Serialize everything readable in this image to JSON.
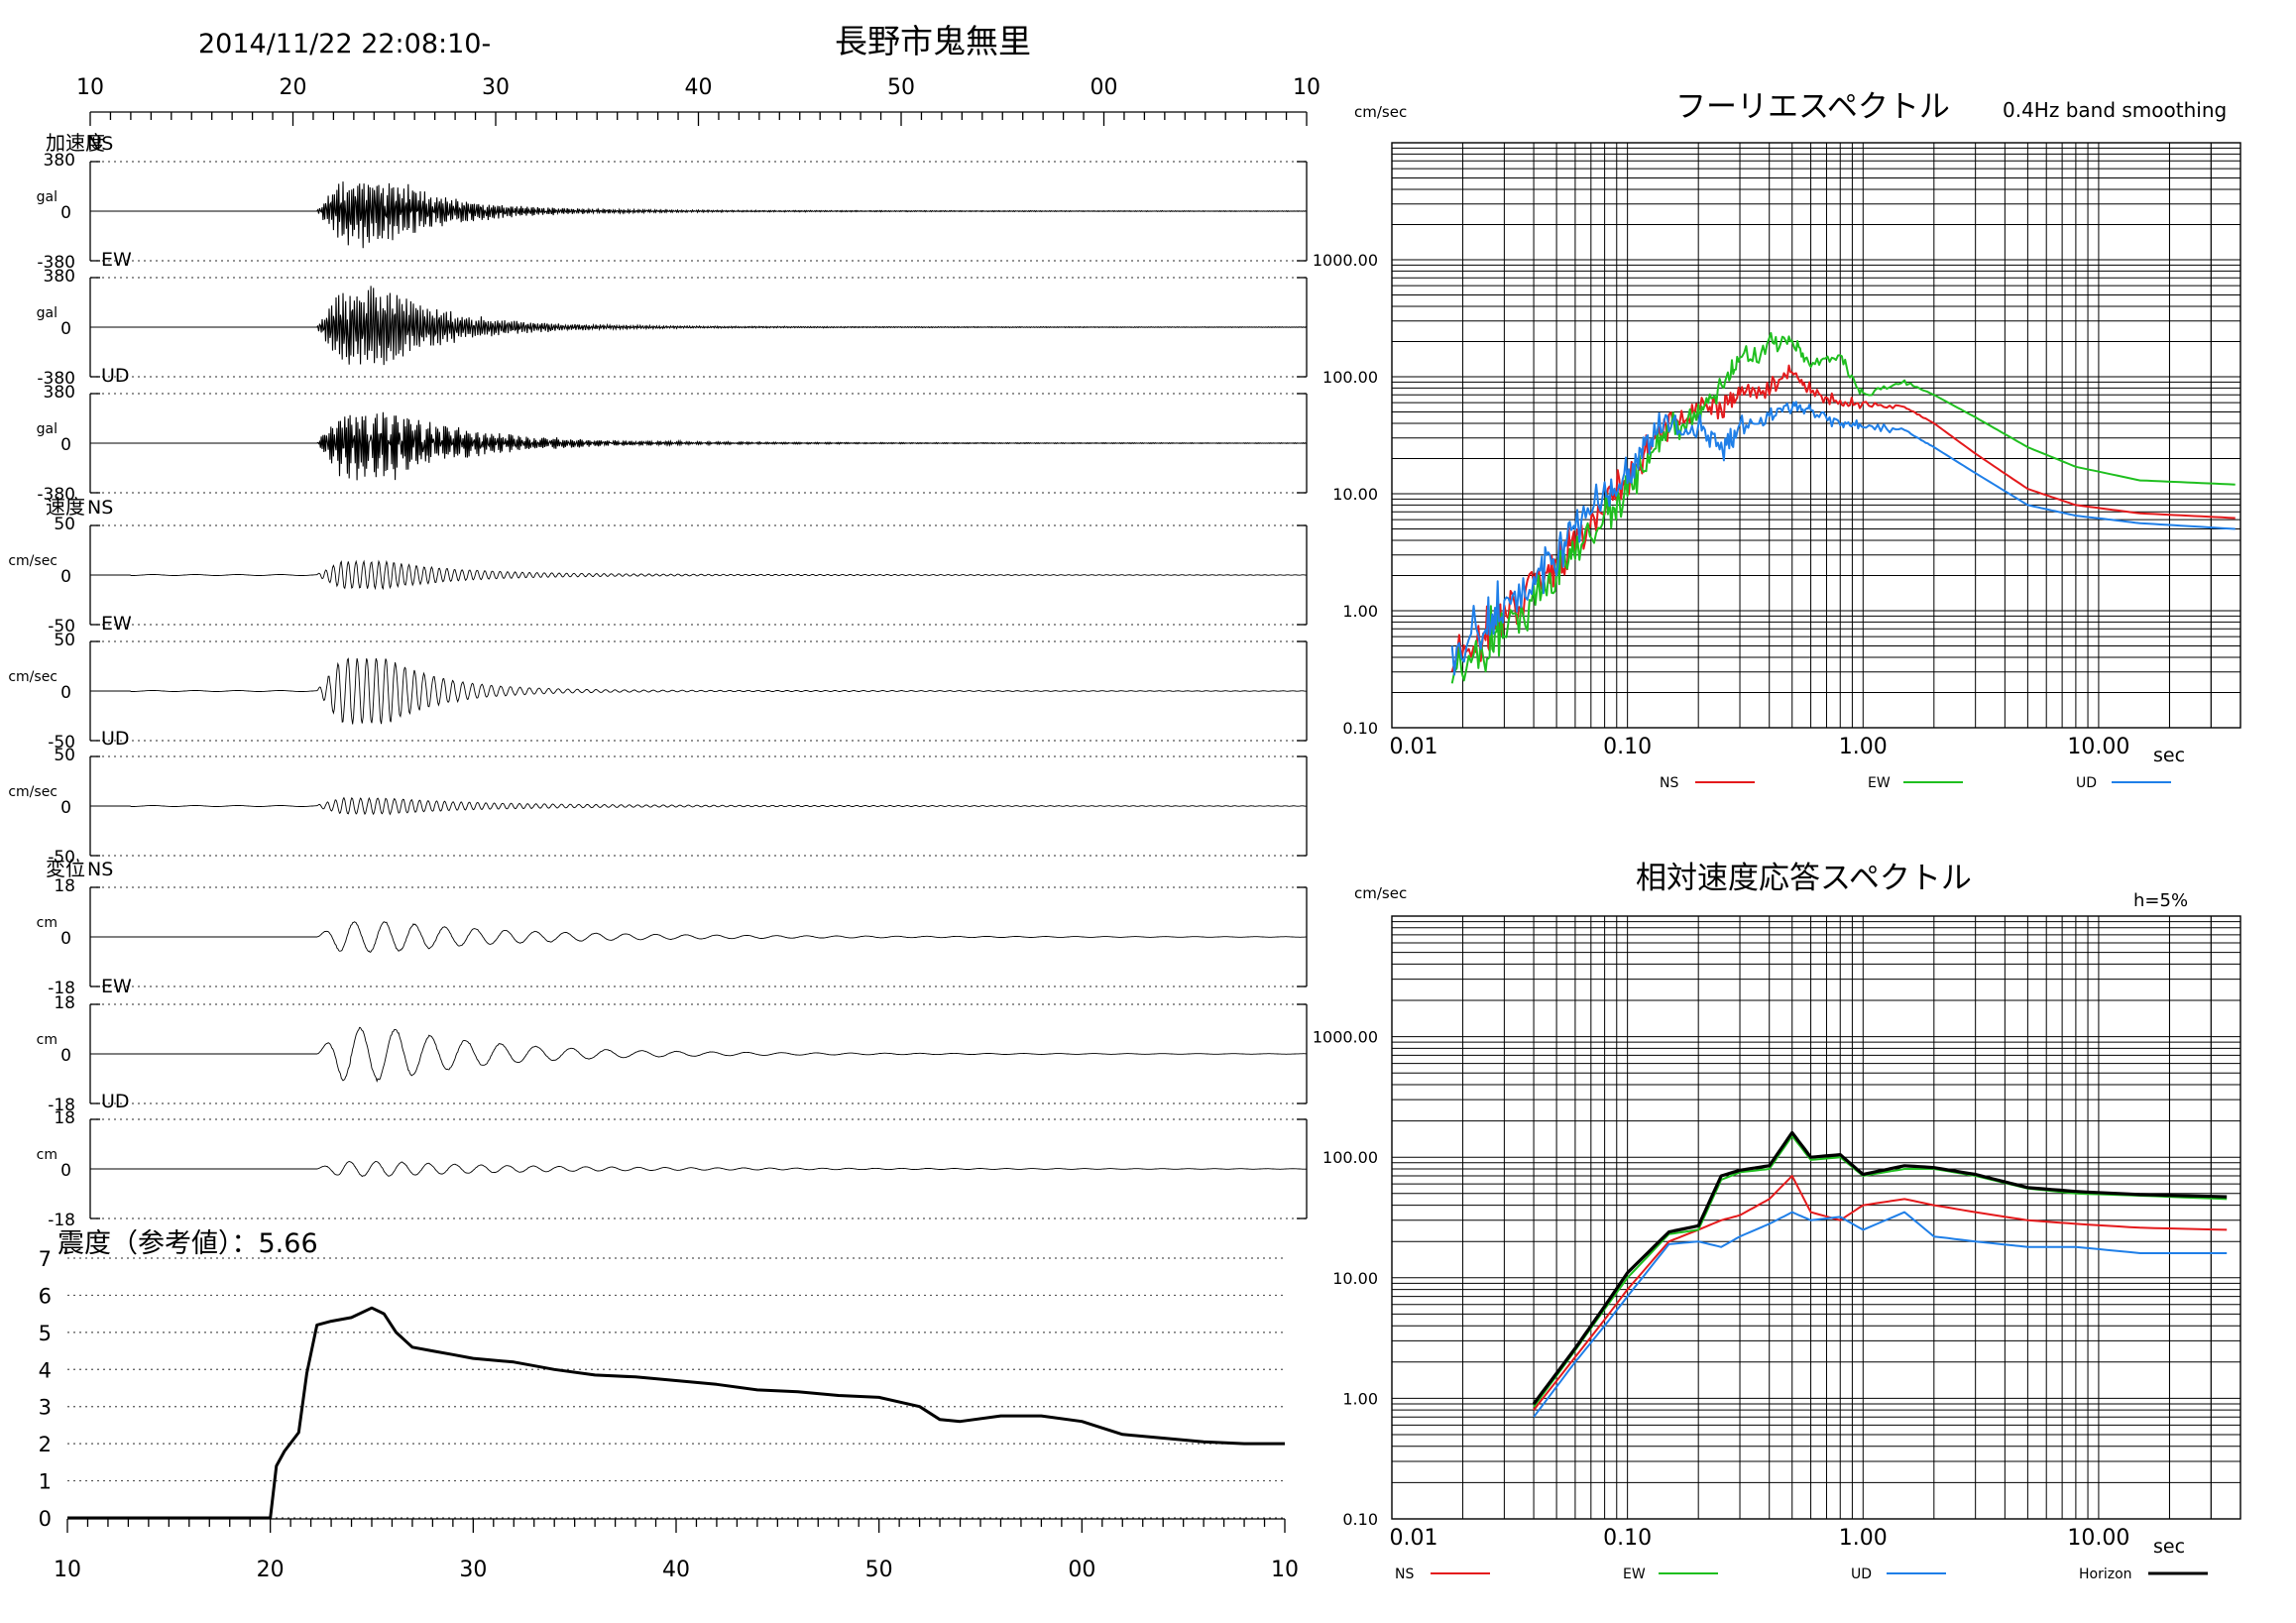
{
  "header": {
    "datetime": "2014/11/22 22:08:10-",
    "station": "長野市鬼無里"
  },
  "colors": {
    "ns": "#e41a1c",
    "ew": "#1fbf1f",
    "ud": "#1f7fe8",
    "horizon": "#000000",
    "trace": "#000000"
  },
  "waveforms": {
    "time_axis_labels": [
      "10",
      "20",
      "30",
      "40",
      "50",
      "00",
      "10"
    ],
    "panels": [
      {
        "group": "加速度",
        "component": "NS",
        "unit": "gal",
        "max": 380,
        "labels": {
          "top": "380",
          "zero": "0",
          "bottom": "-380"
        }
      },
      {
        "group": "",
        "component": "EW",
        "unit": "gal",
        "max": 380,
        "labels": {
          "top": "380",
          "zero": "0",
          "bottom": "-380"
        }
      },
      {
        "group": "",
        "component": "UD",
        "unit": "gal",
        "max": 380,
        "labels": {
          "top": "380",
          "zero": "0",
          "bottom": "-380"
        }
      },
      {
        "group": "速度",
        "component": "NS",
        "unit": "cm/sec",
        "max": 50,
        "labels": {
          "top": "50",
          "zero": "0",
          "bottom": "-50"
        }
      },
      {
        "group": "",
        "component": "EW",
        "unit": "cm/sec",
        "max": 50,
        "labels": {
          "top": "50",
          "zero": "0",
          "bottom": "-50"
        }
      },
      {
        "group": "",
        "component": "UD",
        "unit": "cm/sec",
        "max": 50,
        "labels": {
          "top": "50",
          "zero": "0",
          "bottom": "-50"
        }
      },
      {
        "group": "変位",
        "component": "NS",
        "unit": "cm",
        "max": 18,
        "labels": {
          "top": "18",
          "zero": "0",
          "bottom": "-18"
        }
      },
      {
        "group": "",
        "component": "EW",
        "unit": "cm",
        "max": 18,
        "labels": {
          "top": "18",
          "zero": "0",
          "bottom": "-18"
        }
      },
      {
        "group": "",
        "component": "UD",
        "unit": "cm",
        "max": 18,
        "labels": {
          "top": "18",
          "zero": "0",
          "bottom": "-18"
        }
      }
    ]
  },
  "intensity": {
    "title": "震度（参考値）：5.66",
    "y_labels": [
      "7",
      "6",
      "5",
      "4",
      "3",
      "2",
      "1",
      "0"
    ],
    "x_labels": [
      "10",
      "20",
      "30",
      "40",
      "50",
      "00",
      "10"
    ]
  },
  "fourier": {
    "title": "フーリエスペクトル",
    "note": "0.4Hz band smoothing",
    "unit": "cm/sec",
    "y_labels": [
      "1000.00",
      "100.00",
      "10.00",
      "1.00",
      "0.10"
    ],
    "x_labels": [
      "0.01",
      "0.10",
      "1.00",
      "10.00"
    ],
    "x_unit": "sec",
    "legend": [
      "NS",
      "EW",
      "UD"
    ]
  },
  "response": {
    "title": "相対速度応答スペクトル",
    "note": "h=5%",
    "unit": "cm/sec",
    "y_labels": [
      "1000.00",
      "100.00",
      "10.00",
      "1.00",
      "0.10"
    ],
    "x_labels": [
      "0.01",
      "0.10",
      "1.00",
      "10.00"
    ],
    "x_unit": "sec",
    "legend": [
      "NS",
      "EW",
      "UD",
      "Horizon"
    ]
  },
  "chart_data": [
    {
      "type": "line",
      "title": "長野市鬼無里",
      "xlabel": "",
      "ylabel": "",
      "note": "9 waveform traces (acceleration gal, velocity cm/sec, displacement cm; NS/EW/UD) vs time 22:08:10 to 22:09:10; approximate peak absolute amplitudes",
      "categories": [
        "加速度NS",
        "加速度EW",
        "加速度UD",
        "速度NS",
        "速度EW",
        "速度UD",
        "変位NS",
        "変位EW",
        "変位UD"
      ],
      "values": [
        310,
        360,
        300,
        18,
        45,
        9,
        7,
        13,
        3
      ],
      "event_start_seconds_label": "21"
    },
    {
      "type": "line",
      "title": "震度（参考値）：5.66",
      "xlabel": "",
      "ylabel": "",
      "ylim": [
        0,
        7
      ],
      "x": [
        10,
        20,
        20.3,
        20.7,
        21.4,
        21.8,
        22.3,
        23,
        24,
        25,
        25.6,
        26.2,
        27,
        28,
        29,
        30,
        32,
        34,
        36,
        38,
        40,
        42,
        44,
        46,
        48,
        50,
        52,
        53,
        54,
        56,
        58,
        60,
        62,
        64,
        66,
        68,
        70
      ],
      "values": [
        0,
        0,
        1.4,
        1.8,
        2.3,
        3.9,
        5.2,
        5.3,
        5.4,
        5.66,
        5.5,
        5.0,
        4.6,
        4.5,
        4.4,
        4.3,
        4.2,
        4.0,
        3.85,
        3.8,
        3.7,
        3.6,
        3.45,
        3.4,
        3.3,
        3.25,
        3.0,
        2.65,
        2.6,
        2.75,
        2.75,
        2.6,
        2.25,
        2.15,
        2.05,
        2.0,
        2.0
      ]
    },
    {
      "type": "line",
      "title": "フーリエスペクトル",
      "xlabel": "sec",
      "ylabel": "cm/sec",
      "scale": "log-log",
      "xlim": [
        0.01,
        40
      ],
      "ylim": [
        0.1,
        10000
      ],
      "grid": true,
      "legend_position": "bottom",
      "series": [
        {
          "name": "NS",
          "x": [
            0.018,
            0.025,
            0.03,
            0.04,
            0.05,
            0.06,
            0.08,
            0.1,
            0.12,
            0.15,
            0.2,
            0.25,
            0.3,
            0.4,
            0.5,
            0.6,
            0.8,
            1.0,
            1.5,
            2.0,
            3.0,
            5.0,
            8.0,
            15.0,
            38.0
          ],
          "values": [
            0.35,
            0.6,
            0.9,
            1.5,
            2.5,
            4.0,
            8.0,
            12.0,
            22.0,
            40.0,
            55.0,
            55.0,
            70.0,
            80.0,
            110.0,
            75.0,
            60.0,
            58.0,
            55.0,
            40.0,
            22.0,
            11.0,
            8.0,
            6.8,
            6.2
          ]
        },
        {
          "name": "EW",
          "x": [
            0.018,
            0.025,
            0.03,
            0.04,
            0.05,
            0.06,
            0.08,
            0.1,
            0.12,
            0.15,
            0.2,
            0.25,
            0.3,
            0.4,
            0.5,
            0.6,
            0.8,
            1.0,
            1.5,
            2.0,
            3.0,
            5.0,
            8.0,
            15.0,
            38.0
          ],
          "values": [
            0.3,
            0.5,
            0.7,
            1.2,
            2.0,
            3.0,
            6.0,
            10.0,
            20.0,
            35.0,
            50.0,
            80.0,
            140.0,
            190.0,
            200.0,
            130.0,
            150.0,
            70.0,
            90.0,
            70.0,
            45.0,
            25.0,
            17.0,
            13.0,
            12.0
          ]
        },
        {
          "name": "UD",
          "x": [
            0.018,
            0.025,
            0.03,
            0.04,
            0.05,
            0.06,
            0.08,
            0.1,
            0.12,
            0.15,
            0.2,
            0.25,
            0.3,
            0.4,
            0.5,
            0.6,
            0.8,
            1.0,
            1.5,
            2.0,
            3.0,
            5.0,
            8.0,
            15.0,
            38.0
          ],
          "values": [
            0.4,
            0.7,
            1.0,
            1.8,
            3.0,
            5.0,
            9.0,
            14.0,
            25.0,
            40.0,
            35.0,
            25.0,
            35.0,
            45.0,
            55.0,
            50.0,
            40.0,
            38.0,
            35.0,
            25.0,
            15.0,
            8.0,
            6.5,
            5.6,
            5.0
          ]
        }
      ]
    },
    {
      "type": "line",
      "title": "相対速度応答スペクトル",
      "xlabel": "sec",
      "ylabel": "cm/sec",
      "scale": "log-log",
      "xlim": [
        0.01,
        40
      ],
      "ylim": [
        0.1,
        10000
      ],
      "grid": true,
      "legend_position": "bottom",
      "series": [
        {
          "name": "NS",
          "x": [
            0.04,
            0.06,
            0.08,
            0.1,
            0.15,
            0.2,
            0.25,
            0.3,
            0.4,
            0.5,
            0.6,
            0.8,
            1.0,
            1.5,
            2.0,
            3.0,
            5.0,
            8.0,
            15.0,
            35.0
          ],
          "values": [
            0.8,
            2.2,
            4.5,
            8.0,
            20.0,
            25.0,
            30.0,
            33.0,
            45.0,
            70.0,
            35.0,
            30.0,
            40.0,
            45.0,
            40.0,
            35.0,
            30.0,
            28.0,
            26.0,
            25.0
          ]
        },
        {
          "name": "EW",
          "x": [
            0.04,
            0.06,
            0.08,
            0.1,
            0.15,
            0.2,
            0.25,
            0.3,
            0.4,
            0.5,
            0.6,
            0.8,
            1.0,
            1.5,
            2.0,
            3.0,
            5.0,
            8.0,
            15.0,
            35.0
          ],
          "values": [
            0.85,
            2.5,
            5.5,
            10.0,
            23.0,
            25.0,
            65.0,
            75.0,
            80.0,
            150.0,
            95.0,
            100.0,
            70.0,
            80.0,
            80.0,
            70.0,
            55.0,
            50.0,
            48.0,
            45.0
          ]
        },
        {
          "name": "UD",
          "x": [
            0.04,
            0.06,
            0.08,
            0.1,
            0.15,
            0.2,
            0.25,
            0.3,
            0.4,
            0.5,
            0.6,
            0.8,
            1.0,
            1.5,
            2.0,
            3.0,
            5.0,
            8.0,
            15.0,
            35.0
          ],
          "values": [
            0.7,
            2.0,
            4.0,
            7.0,
            19.0,
            20.0,
            18.0,
            22.0,
            28.0,
            35.0,
            30.0,
            32.0,
            25.0,
            35.0,
            22.0,
            20.0,
            18.0,
            18.0,
            16.0,
            16.0
          ]
        },
        {
          "name": "Horizon",
          "x": [
            0.04,
            0.06,
            0.08,
            0.1,
            0.15,
            0.2,
            0.25,
            0.3,
            0.4,
            0.5,
            0.6,
            0.8,
            1.0,
            1.5,
            2.0,
            3.0,
            5.0,
            8.0,
            15.0,
            35.0
          ],
          "values": [
            0.9,
            2.6,
            5.8,
            11.0,
            24.0,
            27.0,
            70.0,
            78.0,
            85.0,
            160.0,
            100.0,
            105.0,
            72.0,
            85.0,
            82.0,
            72.0,
            56.0,
            52.0,
            49.0,
            47.0
          ]
        }
      ]
    }
  ]
}
